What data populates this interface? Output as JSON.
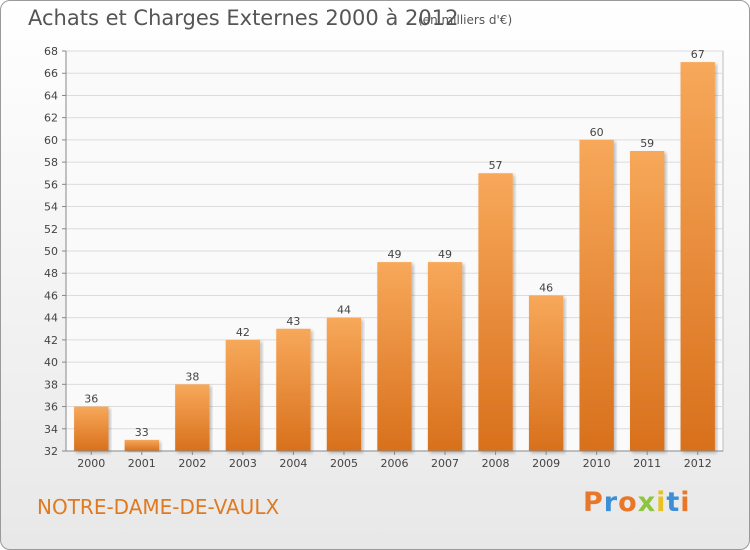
{
  "chart_data": {
    "type": "bar",
    "title": "Achats et Charges Externes 2000 à 2012",
    "subtitle": "(en milliers d'€)",
    "categories": [
      "2000",
      "2001",
      "2002",
      "2003",
      "2004",
      "2005",
      "2006",
      "2007",
      "2008",
      "2009",
      "2010",
      "2011",
      "2012"
    ],
    "values": [
      36,
      33,
      38,
      42,
      43,
      44,
      49,
      49,
      57,
      46,
      60,
      59,
      67
    ],
    "ylim": [
      32,
      68
    ],
    "yticks": [
      32,
      34,
      36,
      38,
      40,
      42,
      44,
      46,
      48,
      50,
      52,
      54,
      56,
      58,
      60,
      62,
      64,
      66,
      68
    ],
    "grid": true,
    "bar_color_top": "#f7a85a",
    "bar_color_bottom": "#d8701c"
  },
  "footer": {
    "commune": "NOTRE-DAME-DE-VAULX",
    "logo": "Proxiti"
  },
  "colors": {
    "logo_letters": [
      "#e8772a",
      "#3c8fd6",
      "#e8772a",
      "#8cc63f",
      "#e8c21e",
      "#3c8fd6",
      "#e8772a"
    ]
  }
}
